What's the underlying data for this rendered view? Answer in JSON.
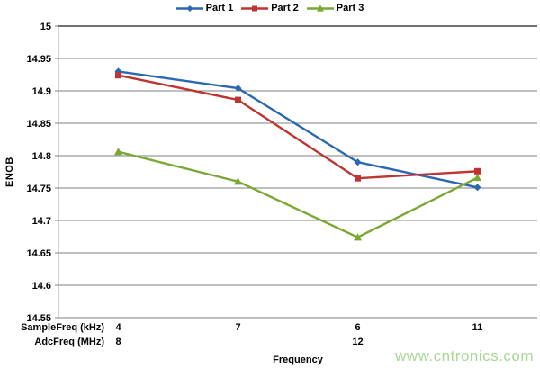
{
  "page": {
    "background": "#ffffff"
  },
  "watermark": {
    "text": "www.cntronics.com",
    "color": "#a8d893"
  },
  "chart_data": {
    "type": "line",
    "title": "",
    "ylabel": "ENOB",
    "xlabel": "Frequency",
    "ylim": [
      14.55,
      15.0
    ],
    "ytick_step": 0.05,
    "ytick_labels": [
      "15",
      "14.95",
      "14.9",
      "14.85",
      "14.8",
      "14.75",
      "14.7",
      "14.65",
      "14.6",
      "14.55"
    ],
    "grid": true,
    "legend_position": "top",
    "x_axis_rows": [
      {
        "label": "SampleFreq (kHz)",
        "values": [
          "4",
          "7",
          "6",
          "11"
        ]
      },
      {
        "label": "AdcFreq (MHz)",
        "values": [
          "8",
          "",
          "12",
          ""
        ]
      }
    ],
    "series": [
      {
        "name": "Part 1",
        "color": "#2a68b2",
        "marker": "diamond",
        "values": [
          14.93,
          14.904,
          14.79,
          14.751
        ]
      },
      {
        "name": "Part 2",
        "color": "#bd3431",
        "marker": "square",
        "values": [
          14.924,
          14.886,
          14.765,
          14.776
        ]
      },
      {
        "name": "Part 3",
        "color": "#79a833",
        "marker": "triangle",
        "values": [
          14.806,
          14.76,
          14.674,
          14.766
        ]
      }
    ],
    "colors": {
      "gridline": "#7f7f7f",
      "plot_top_border": "#404040",
      "y_axis_line": "#a0a0a0"
    }
  }
}
